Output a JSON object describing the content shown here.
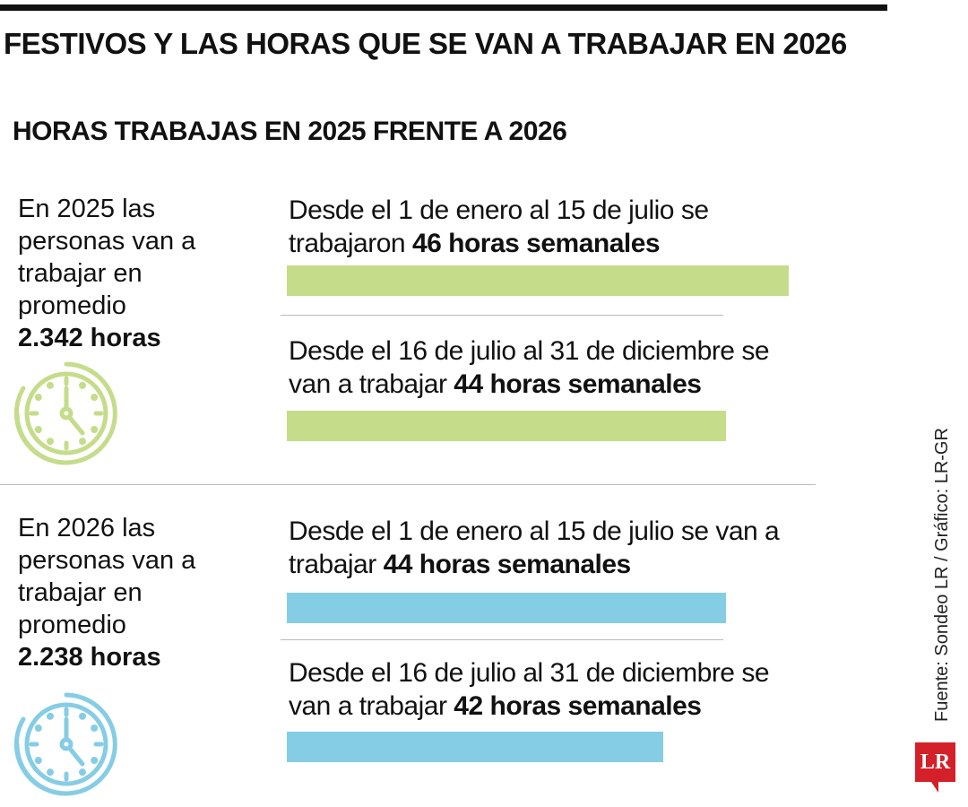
{
  "title": "FESTIVOS Y LAS HORAS QUE SE VAN A TRABAJAR EN 2026",
  "subtitle": "HORAS TRABAJAS EN 2025 FRENTE A 2026",
  "source": "Fuente: Sondeo LR / Gráfico: LR-GR",
  "logo": "LR",
  "colors": {
    "y2025": "#c5dc8a",
    "y2026": "#85cde4"
  },
  "chart_data": {
    "type": "bar",
    "orientation": "horizontal",
    "unit": "horas semanales",
    "groups": [
      {
        "year": "2025",
        "summary": "En 2025 las personas van a trabajar en promedio",
        "summary_value": "2.342 horas",
        "icon": "clock-icon",
        "periods": [
          {
            "text": "Desde el 1 de enero al 15 de julio se trabajaron",
            "label": "46 horas semanales",
            "value": 46
          },
          {
            "text": "Desde el 16 de julio al 31 de diciembre se van a trabajar",
            "label": "44 horas semanales",
            "value": 44
          }
        ]
      },
      {
        "year": "2026",
        "summary": "En 2026 las personas van a trabajar en promedio",
        "summary_value": "2.238 horas",
        "icon": "clock-icon",
        "periods": [
          {
            "text": "Desde el 1 de enero al 15 de julio se van a trabajar",
            "label": "44 horas semanales",
            "value": 44
          },
          {
            "text": "Desde el 16 de julio al 31 de diciembre se van a trabajar",
            "label": "42 horas semanales",
            "value": 42
          }
        ]
      }
    ]
  }
}
